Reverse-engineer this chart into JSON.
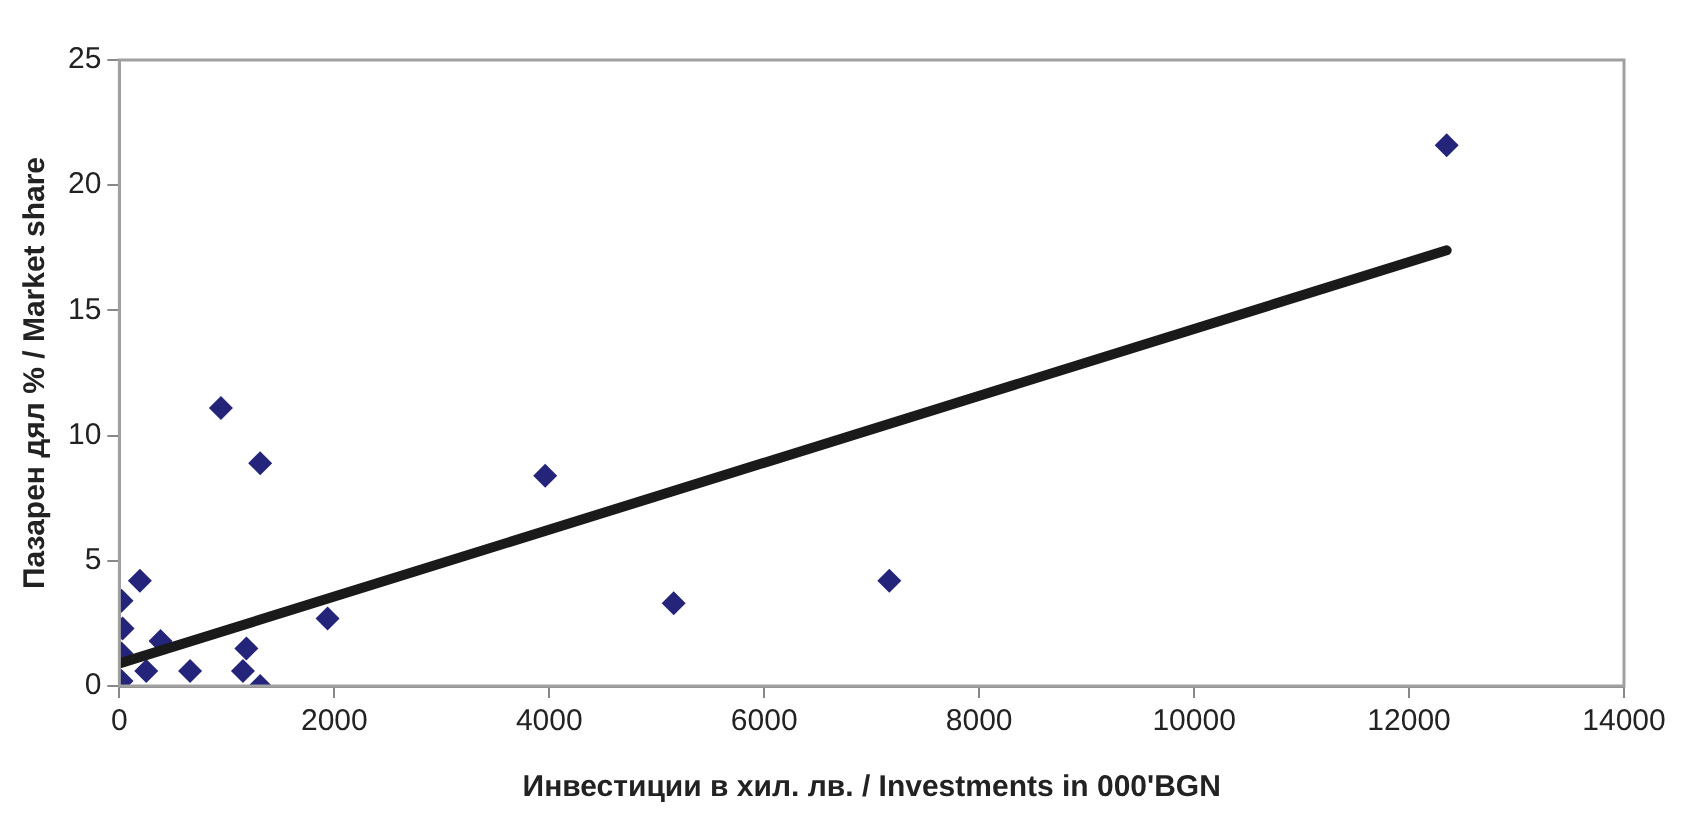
{
  "chart_data": {
    "type": "scatter",
    "xlabel": "Инвестиции в хил. лв. / Investments in 000'BGN",
    "ylabel": "Пазарен дял % / Market share",
    "xlim": [
      0,
      14000
    ],
    "xticks": [
      0,
      2000,
      4000,
      6000,
      8000,
      10000,
      12000,
      14000
    ],
    "ylim": [
      0,
      25
    ],
    "yticks": [
      0,
      5,
      10,
      15,
      20,
      25
    ],
    "grid": false,
    "legend": false,
    "marker": "diamond",
    "series": [
      {
        "color": "#24247a",
        "x": [
          12350,
          945,
          1310,
          3962,
          1937,
          5158,
          7164,
          1182,
          658,
          1150,
          1310,
          383,
          191,
          20,
          30,
          20,
          20,
          250
        ],
        "values": [
          21.6,
          11.1,
          8.9,
          8.4,
          2.7,
          3.3,
          4.2,
          1.5,
          0.6,
          0.6,
          0.0,
          1.8,
          4.2,
          3.4,
          2.3,
          1.3,
          0.2,
          0.6
        ]
      },
      {
        "type": "line",
        "color": "#1a1a1a",
        "marker": "none",
        "x": [
          0,
          12350
        ],
        "values": [
          0.9,
          17.4
        ]
      }
    ]
  }
}
